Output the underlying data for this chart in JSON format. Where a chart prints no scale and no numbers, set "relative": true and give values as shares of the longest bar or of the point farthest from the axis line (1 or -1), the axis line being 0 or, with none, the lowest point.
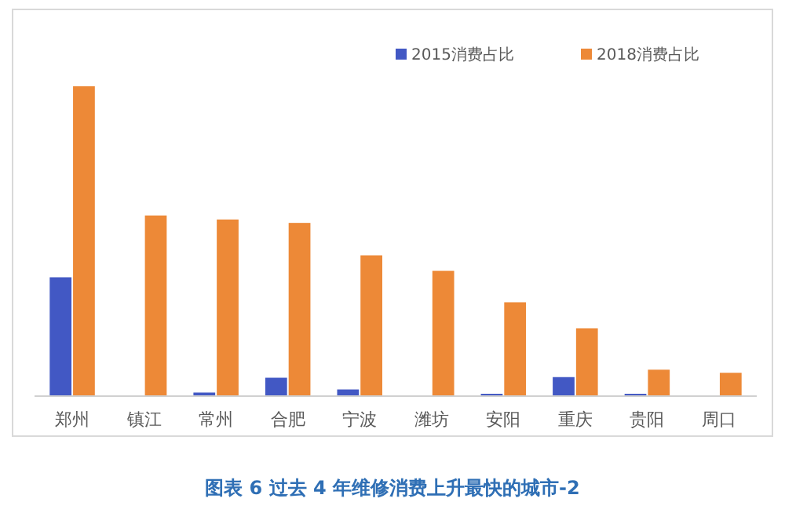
{
  "chart_data": {
    "type": "bar",
    "title": "图表 6 过去 4 年维修消费上升最快的城市-2",
    "relative": true,
    "legend": "top right",
    "categories": [
      "郑州",
      "镇江",
      "常州",
      "合肥",
      "宁波",
      "潍坊",
      "安阳",
      "重庆",
      "贵阳",
      "周口"
    ],
    "series": [
      {
        "name": "2015消费占比",
        "color": "#4258c4",
        "values": [
          0.382,
          0,
          0.009,
          0.057,
          0.019,
          0,
          0.005,
          0.059,
          0.005,
          0
        ]
      },
      {
        "name": "2018消费占比",
        "color": "#ed8937",
        "values": [
          1,
          0.582,
          0.569,
          0.558,
          0.453,
          0.403,
          0.301,
          0.217,
          0.083,
          0.073
        ]
      }
    ]
  }
}
